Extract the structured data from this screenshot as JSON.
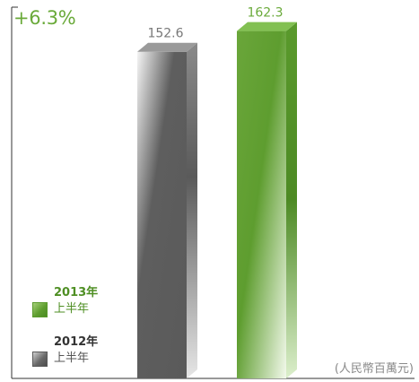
{
  "growth_label": "+6.3%",
  "unit_label": "(人民幣百萬元)",
  "colors": {
    "green_front": "#5c9b2e",
    "green_light": "#eef6e6",
    "green_side": "#4d8a24",
    "green_top": "#7fbf4f",
    "gray_front": "#5c5c5c",
    "gray_light": "#f2f2f2",
    "gray_side": "#6e6e6e",
    "gray_top": "#8a8a8a",
    "axis": "#333333"
  },
  "legend": [
    {
      "year": "2013年",
      "period": "上半年",
      "color": "green"
    },
    {
      "year": "2012年",
      "period": "上半年",
      "color": "gray"
    }
  ],
  "chart_data": {
    "type": "bar",
    "categories": [
      "2012年上半年",
      "2013年上半年"
    ],
    "values": [
      152.6,
      162.3
    ],
    "value_labels": [
      "152.6",
      "162.3"
    ],
    "annotation": "+6.3%",
    "unit": "(人民幣百萬元)",
    "ylim": [
      0,
      180
    ],
    "legend_position": "bottom-left",
    "grid": false
  }
}
